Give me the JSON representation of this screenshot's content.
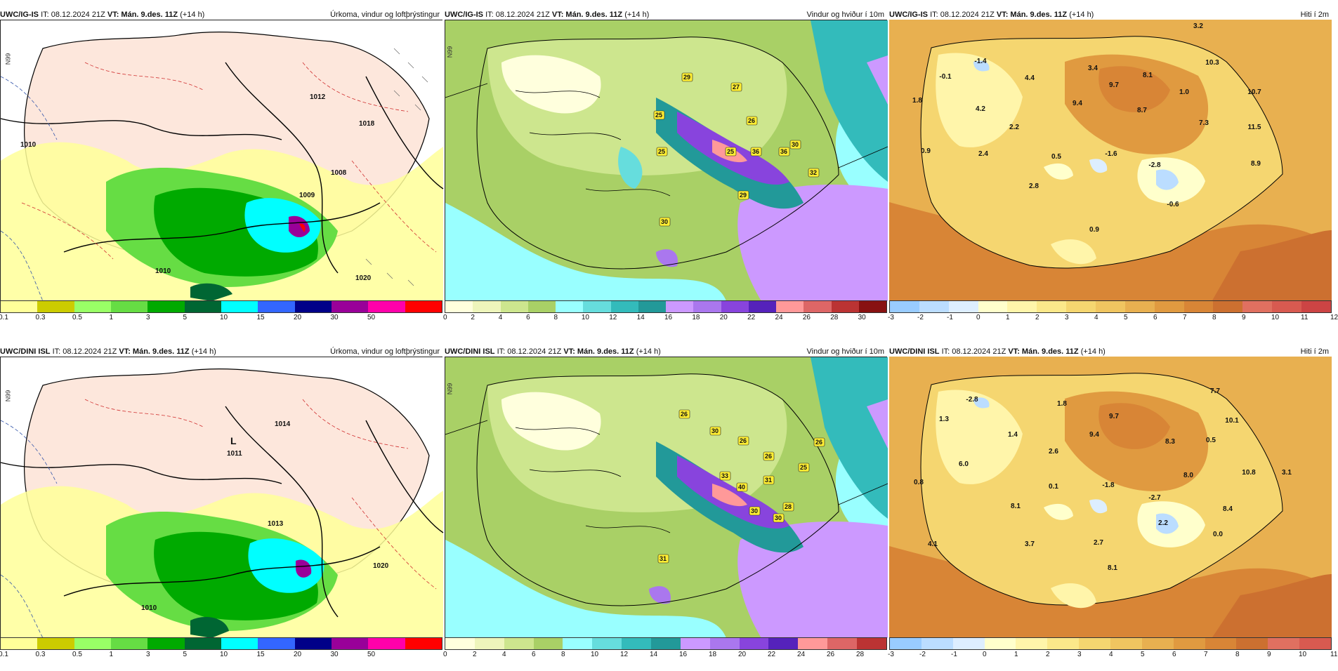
{
  "rows": [
    {
      "model": "UWC/IG-IS",
      "it": "IT: 08.12.2024 21Z",
      "vt_label": "VT: Mán. 9.des. 11Z",
      "lead": "(+14 h)"
    },
    {
      "model": "UWC/DINI ISL",
      "it": "IT: 08.12.2024 21Z",
      "vt_label": "VT: Mán. 9.des. 11Z",
      "lead": "(+14 h)"
    }
  ],
  "titles": {
    "precip": "Úrkoma, vindur og loftþrýstingur",
    "wind": "Vindur og hviður í 10m",
    "temp": "Hiti í 2m"
  },
  "scales": {
    "precip": {
      "colors": [
        "#ffff99",
        "#cccc00",
        "#99ff66",
        "#66dd44",
        "#00aa00",
        "#006633",
        "#00ffff",
        "#3366ff",
        "#000088",
        "#990099",
        "#ff00aa",
        "#ff0000"
      ],
      "ticks": [
        "0.1",
        "0.3",
        "0.5",
        "1",
        "3",
        "5",
        "10",
        "15",
        "20",
        "30",
        "50"
      ]
    },
    "wind_top": {
      "colors": [
        "#ffffdd",
        "#eef5bb",
        "#cde68e",
        "#a9d066",
        "#99ffff",
        "#66dddd",
        "#33bbbb",
        "#229999",
        "#cc99ff",
        "#aa77ee",
        "#8844dd",
        "#5522bb",
        "#ff9999",
        "#dd6666",
        "#bb3333",
        "#881111"
      ],
      "ticks": [
        "0",
        "2",
        "4",
        "6",
        "8",
        "10",
        "12",
        "14",
        "16",
        "18",
        "20",
        "22",
        "24",
        "26",
        "28",
        "30"
      ]
    },
    "wind_bottom": {
      "colors": [
        "#ffffdd",
        "#eef5bb",
        "#cde68e",
        "#a9d066",
        "#99ffff",
        "#66dddd",
        "#33bbbb",
        "#229999",
        "#cc99ff",
        "#aa77ee",
        "#8844dd",
        "#5522bb",
        "#ff9999",
        "#dd6666",
        "#bb3333"
      ],
      "ticks": [
        "0",
        "2",
        "4",
        "6",
        "8",
        "10",
        "12",
        "14",
        "16",
        "18",
        "20",
        "22",
        "24",
        "26",
        "28"
      ]
    },
    "temp_top": {
      "colors": [
        "#99ccff",
        "#bbddff",
        "#ddeeff",
        "#ffffcc",
        "#fff5aa",
        "#fbe88a",
        "#f5d670",
        "#f0c560",
        "#e8b050",
        "#e09a40",
        "#d88536",
        "#cc7030",
        "#e07060",
        "#d85a50",
        "#cc4444"
      ],
      "ticks": [
        "-3",
        "-2",
        "-1",
        "0",
        "1",
        "2",
        "3",
        "4",
        "5",
        "6",
        "7",
        "8",
        "9",
        "10",
        "11",
        "12"
      ]
    },
    "temp_bottom": {
      "colors": [
        "#99ccff",
        "#bbddff",
        "#ddeeff",
        "#ffffcc",
        "#fff5aa",
        "#fbe88a",
        "#f5d670",
        "#f0c560",
        "#e8b050",
        "#e09a40",
        "#d88536",
        "#cc7030",
        "#e07060",
        "#d85a50"
      ],
      "ticks": [
        "-3",
        "-2",
        "-1",
        "0",
        "1",
        "2",
        "3",
        "4",
        "5",
        "6",
        "7",
        "8",
        "9",
        "10",
        "11"
      ]
    }
  },
  "temp_top_labels": [
    "3.2",
    "-1.4",
    "-0.1",
    "4.4",
    "3.4",
    "8.1",
    "10.3",
    "1.8",
    "9.7",
    "1.0",
    "10.7",
    "4.2",
    "9.4",
    "8.7",
    "7.3",
    "2.2",
    "11.5",
    "0.9",
    "2.4",
    "0.5",
    "-1.6",
    "-2.8",
    "8.9",
    "2.8",
    "-0.6",
    "0.9"
  ],
  "temp_bottom_labels": [
    "-2.8",
    "1.8",
    "7.7",
    "1.3",
    "9.7",
    "10.1",
    "1.4",
    "9.4",
    "8.3",
    "0.5",
    "2.6",
    "6.0",
    "10.8",
    "3.1",
    "0.8",
    "0.1",
    "-1.8",
    "8.0",
    "-2.7",
    "8.1",
    "8.4",
    "2.2",
    "0.0",
    "4.1",
    "3.7",
    "2.7",
    "8.1"
  ],
  "wind_top_labels": [
    "29",
    "27",
    "25",
    "26",
    "25",
    "25",
    "36",
    "36",
    "30",
    "32",
    "29",
    "30"
  ],
  "wind_bottom_labels": [
    "26",
    "30",
    "26",
    "26",
    "26",
    "25",
    "33",
    "40",
    "31",
    "30",
    "28",
    "30",
    "31"
  ],
  "precip_labels": {
    "top": [
      "1012",
      "1010",
      "1008",
      "1018",
      "1020",
      "1009",
      "1010"
    ],
    "bottom": [
      "L",
      "1011",
      "1014",
      "1013",
      "1020",
      "1010"
    ]
  },
  "lat_label": "N99"
}
